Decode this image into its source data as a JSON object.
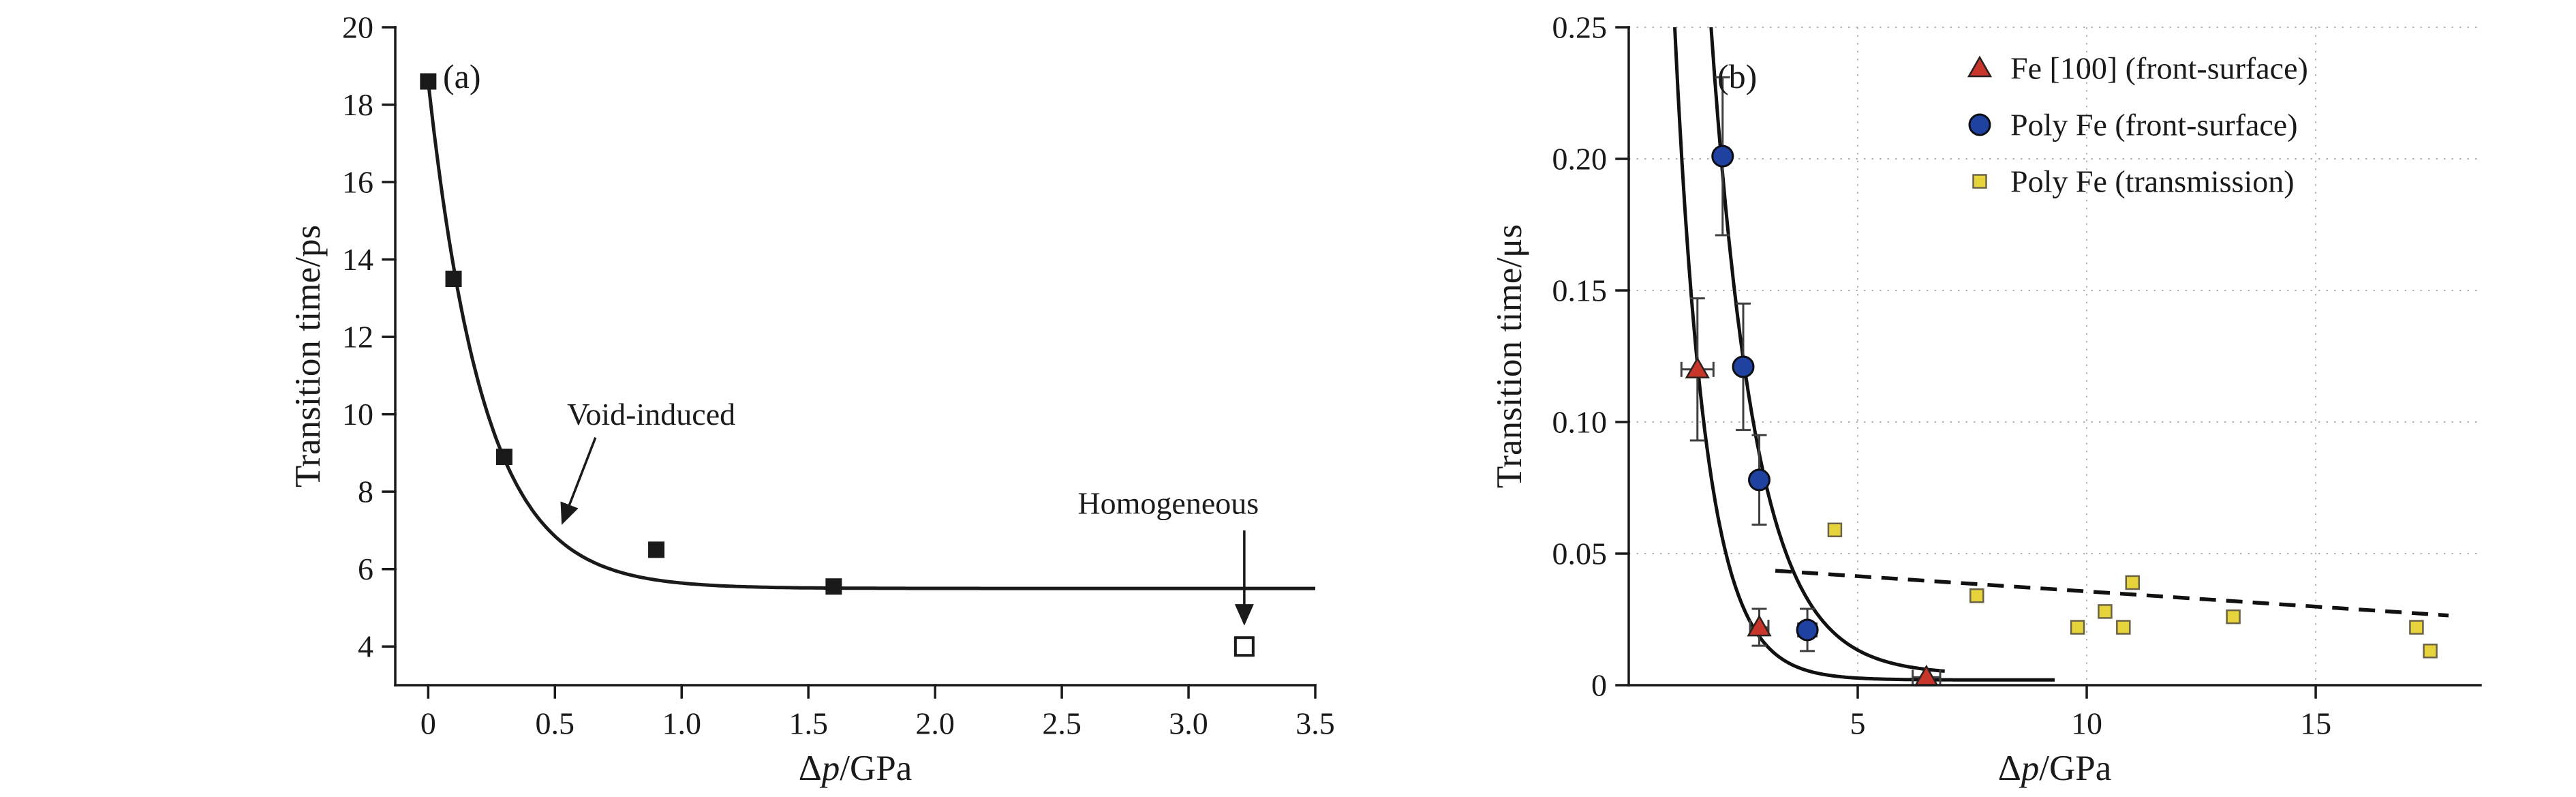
{
  "figure": {
    "background": "#ffffff",
    "ink_color": "#1a1a1a"
  },
  "chart_data": [
    {
      "type": "scatter",
      "panel_label": "(a)",
      "xlabel": {
        "prefix": "Δ",
        "italic": "p",
        "suffix": "/GPa"
      },
      "ylabel": "Transition time/ps",
      "xlim": [
        -0.13,
        3.5
      ],
      "ylim": [
        3,
        20
      ],
      "xticks": {
        "values": [
          0,
          0.5,
          1.0,
          1.5,
          2.0,
          2.5,
          3.0,
          3.5
        ],
        "labels": [
          "0",
          "0.5",
          "1.0",
          "1.5",
          "2.0",
          "2.5",
          "3.0",
          "3.5"
        ]
      },
      "yticks": {
        "values": [
          4,
          6,
          8,
          10,
          12,
          14,
          16,
          18,
          20
        ],
        "labels": [
          "4",
          "6",
          "8",
          "10",
          "12",
          "14",
          "16",
          "18",
          "20"
        ]
      },
      "grid": false,
      "series": [
        {
          "name": "void-induced transition data",
          "marker": "square-filled",
          "color": "#1a1a1a",
          "points": [
            {
              "x": 0.0,
              "y": 18.6
            },
            {
              "x": 0.1,
              "y": 13.5
            },
            {
              "x": 0.3,
              "y": 8.9
            },
            {
              "x": 0.9,
              "y": 6.5
            },
            {
              "x": 1.6,
              "y": 5.55
            }
          ]
        },
        {
          "name": "homogeneous transition data",
          "marker": "square-open",
          "color": "#1a1a1a",
          "points": [
            {
              "x": 3.22,
              "y": 4.0
            }
          ]
        }
      ],
      "curves": [
        {
          "name": "void-induced fit",
          "style": "solid",
          "color": "#1a1a1a",
          "model": "offset-exponential",
          "params": {
            "c": 5.5,
            "a": 13.1,
            "b": 0.22
          },
          "x_range": [
            0.0,
            3.5
          ]
        }
      ],
      "annotations": [
        {
          "text": "Void-induced",
          "text_xy": [
            0.88,
            10.0
          ],
          "arrow_from": [
            0.66,
            9.4
          ],
          "arrow_to": [
            0.53,
            7.2
          ]
        },
        {
          "text": "Homogeneous",
          "text_xy": [
            2.92,
            7.7
          ],
          "arrow_from": [
            3.22,
            7.0
          ],
          "arrow_to": [
            3.22,
            4.6
          ]
        }
      ]
    },
    {
      "type": "scatter",
      "panel_label": "(b)",
      "xlabel": {
        "prefix": "Δ",
        "italic": "p",
        "suffix": "/GPa"
      },
      "ylabel": "Transition time/μs",
      "xlim": [
        0,
        18.6
      ],
      "ylim": [
        0,
        0.25
      ],
      "xticks": {
        "values": [
          5,
          10,
          15
        ],
        "labels": [
          "5",
          "10",
          "15"
        ]
      },
      "yticks": {
        "values": [
          0,
          0.05,
          0.1,
          0.15,
          0.2,
          0.25
        ],
        "labels": [
          "0",
          "0.05",
          "0.10",
          "0.15",
          "0.20",
          "0.25"
        ]
      },
      "grid": true,
      "series": [
        {
          "name": "Fe [100] (front-surface)",
          "marker": "triangle",
          "color": "#c7352b",
          "points": [
            {
              "x": 1.5,
              "y": 0.12,
              "ey": 0.027,
              "ex": 0.35
            },
            {
              "x": 2.85,
              "y": 0.022,
              "ey": 0.007,
              "ex": 0.2
            },
            {
              "x": 6.5,
              "y": 0.003,
              "ex": 0.3
            }
          ]
        },
        {
          "name": "Poly Fe (front-surface)",
          "marker": "circle",
          "color": "#1f41a0",
          "points": [
            {
              "x": 2.05,
              "y": 0.201,
              "ey": 0.03,
              "ex": 0.15
            },
            {
              "x": 2.5,
              "y": 0.121,
              "ey": 0.024,
              "ex": 0.15
            },
            {
              "x": 2.85,
              "y": 0.078,
              "ey": 0.017,
              "ex": 0.15
            },
            {
              "x": 3.9,
              "y": 0.021,
              "ey": 0.008,
              "ex": 0.2
            }
          ]
        },
        {
          "name": "Poly Fe (transmission)",
          "marker": "square-small",
          "color": "#e7d33c",
          "points": [
            {
              "x": 4.5,
              "y": 0.059
            },
            {
              "x": 7.6,
              "y": 0.034
            },
            {
              "x": 9.8,
              "y": 0.022
            },
            {
              "x": 10.4,
              "y": 0.028
            },
            {
              "x": 10.8,
              "y": 0.022
            },
            {
              "x": 11.0,
              "y": 0.039
            },
            {
              "x": 13.2,
              "y": 0.026
            },
            {
              "x": 17.2,
              "y": 0.022
            },
            {
              "x": 17.5,
              "y": 0.013
            }
          ]
        }
      ],
      "curves": [
        {
          "name": "Fe [100] fit",
          "style": "solid",
          "color": "#111111",
          "model": "offset-exponential",
          "params": {
            "c": 0.002,
            "a": 1.085,
            "b": 0.681
          },
          "x_range": [
            0.55,
            9.3
          ]
        },
        {
          "name": "Poly Fe fit",
          "style": "solid",
          "color": "#111111",
          "model": "offset-exponential",
          "params": {
            "c": 0.004,
            "a": 1.544,
            "b": 0.979
          },
          "x_range": [
            1.2,
            6.9
          ]
        },
        {
          "name": "transmission trend",
          "style": "dashed",
          "color": "#111111",
          "model": "segment",
          "points": [
            [
              3.2,
              0.0435
            ],
            [
              17.9,
              0.0265
            ]
          ]
        }
      ],
      "legend": {
        "items": [
          {
            "label": "Fe [100] (front-surface)",
            "marker": "triangle",
            "color": "#c7352b"
          },
          {
            "label": "Poly Fe (front-surface)",
            "marker": "circle",
            "color": "#1f41a0"
          },
          {
            "label": "Poly Fe (transmission)",
            "marker": "square-small",
            "color": "#e7d33c"
          }
        ]
      }
    }
  ]
}
